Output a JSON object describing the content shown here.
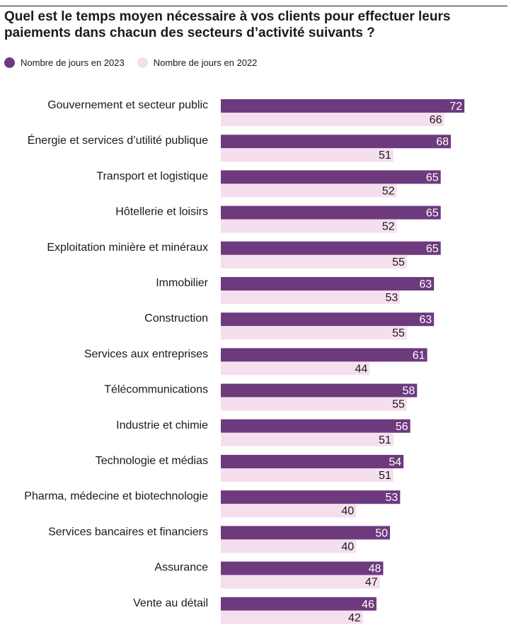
{
  "chart_data": {
    "type": "bar",
    "orientation": "horizontal",
    "title": "Quel est le temps moyen nécessaire à vos clients pour effectuer leurs paiements dans chacun des secteurs d’activité suivants ?",
    "xlabel": "",
    "ylabel": "",
    "xlim": [
      0,
      100
    ],
    "grid": false,
    "legend_position": "top-left",
    "categories": [
      "Gouvernement et secteur public",
      "Énergie et services d’utilité publique",
      "Transport et logistique",
      "Hôtellerie et loisirs",
      "Exploitation minière et minéraux",
      "Immobilier",
      "Construction",
      "Services aux entreprises",
      "Télécommunications",
      "Industrie et chimie",
      "Technologie et médias",
      "Pharma, médecine et biotechnologie",
      "Services bancaires et financiers",
      "Assurance",
      "Vente au détail"
    ],
    "series": [
      {
        "name": "Nombre de jours en 2023",
        "color": "#6d3a7e",
        "values": [
          72,
          68,
          65,
          65,
          65,
          63,
          63,
          61,
          58,
          56,
          54,
          53,
          50,
          48,
          46
        ]
      },
      {
        "name": "Nombre de jours en 2022",
        "color": "#f5dfef",
        "values": [
          66,
          51,
          52,
          52,
          55,
          53,
          55,
          44,
          55,
          51,
          51,
          40,
          40,
          47,
          42
        ]
      }
    ]
  }
}
